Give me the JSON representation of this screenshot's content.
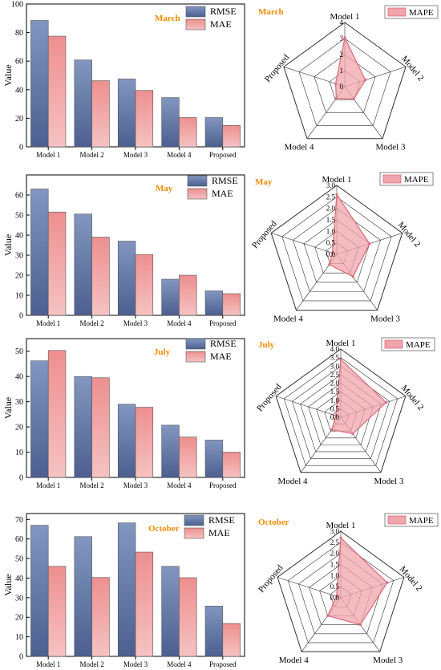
{
  "colors": {
    "rmse_top": "#8296c0",
    "rmse_bottom": "#4c5f8f",
    "mae_top": "#ee8f8f",
    "mae_bottom": "#f5c2c2",
    "mape_fill": "#f0a4ac",
    "mape_line": "#dc6a78",
    "month_label": "#f08c00"
  },
  "legend": {
    "rmse": "RMSE",
    "mae": "MAE",
    "mape": "MAPE"
  },
  "chart_data": [
    {
      "type": "bar",
      "title": "March",
      "ylabel": "Value",
      "categories": [
        "Model 1",
        "Model 2",
        "Model 3",
        "Model 4",
        "Proposed"
      ],
      "ylim": [
        0,
        100
      ],
      "yticks": [
        0,
        20,
        40,
        60,
        80,
        100
      ],
      "series": [
        {
          "name": "RMSE",
          "values": [
            88.5,
            60.8,
            47.5,
            34.5,
            20.5
          ]
        },
        {
          "name": "MAE",
          "values": [
            77.5,
            46.3,
            39.5,
            20.5,
            15
          ]
        }
      ]
    },
    {
      "type": "radar",
      "title": "March",
      "axes": [
        "Model 1",
        "Model 2",
        "Model 3",
        "Model 4",
        "Proposed"
      ],
      "rlim": [
        0,
        4
      ],
      "rticks": [
        "0",
        "1",
        "2",
        "3",
        "4"
      ],
      "series": [
        {
          "name": "MAPE",
          "values": [
            3.05,
            1.35,
            0.95,
            0.9,
            0.6
          ]
        }
      ]
    },
    {
      "type": "bar",
      "title": "May",
      "ylabel": "Value",
      "categories": [
        "Model 1",
        "Model 2",
        "Model 3",
        "Model 4",
        "Proposed"
      ],
      "ylim": [
        0,
        70
      ],
      "yticks": [
        0,
        10,
        20,
        30,
        40,
        50,
        60
      ],
      "series": [
        {
          "name": "RMSE",
          "values": [
            63,
            50.5,
            37,
            18,
            12.2
          ]
        },
        {
          "name": "MAE",
          "values": [
            51.5,
            39,
            30.3,
            20,
            10.8
          ]
        }
      ]
    },
    {
      "type": "radar",
      "title": "May",
      "axes": [
        "Model 1",
        "Model 2",
        "Model 3",
        "Model 4",
        "Proposed"
      ],
      "rlim": [
        0,
        3
      ],
      "rticks": [
        "0.0",
        "0.5",
        "1.0",
        "1.5",
        "2.0",
        "2.5",
        "3.0"
      ],
      "series": [
        {
          "name": "MAPE",
          "values": [
            2.6,
            1.5,
            1.2,
            0.55,
            0.2
          ]
        }
      ]
    },
    {
      "type": "bar",
      "title": "July",
      "ylabel": "Value",
      "categories": [
        "Model 1",
        "Model 2",
        "Model 3",
        "Model 4",
        "Proposed"
      ],
      "ylim": [
        0,
        55
      ],
      "yticks": [
        0,
        10,
        20,
        30,
        40,
        50
      ],
      "series": [
        {
          "name": "RMSE",
          "values": [
            46.2,
            40,
            29,
            20.7,
            14.8
          ]
        },
        {
          "name": "MAE",
          "values": [
            50.3,
            39.5,
            27.8,
            16,
            10
          ]
        }
      ]
    },
    {
      "type": "radar",
      "title": "July",
      "axes": [
        "Model 1",
        "Model 2",
        "Model 3",
        "Model 4",
        "Proposed"
      ],
      "rlim": [
        0,
        4
      ],
      "rticks": [
        "0.0",
        "0.5",
        "1.0",
        "1.5",
        "2.0",
        "2.5",
        "3.0",
        "3.5",
        "4.0"
      ],
      "series": [
        {
          "name": "MAPE",
          "values": [
            3.4,
            2.8,
            1.2,
            0.9,
            0.3
          ]
        }
      ]
    },
    {
      "type": "bar",
      "title": "October",
      "ylabel": "Value",
      "categories": [
        "Model 1",
        "Model 2",
        "Model 3",
        "Model 4",
        "Proposed"
      ],
      "ylim": [
        0,
        73
      ],
      "yticks": [
        0,
        10,
        20,
        30,
        40,
        50,
        60,
        70
      ],
      "series": [
        {
          "name": "RMSE",
          "values": [
            67,
            61.2,
            68.2,
            46,
            25.7
          ]
        },
        {
          "name": "MAE",
          "values": [
            46,
            40.3,
            53.3,
            40.2,
            16.8
          ]
        }
      ]
    },
    {
      "type": "radar",
      "title": "October",
      "axes": [
        "Model 1",
        "Model 2",
        "Model 3",
        "Model 4",
        "Proposed"
      ],
      "rlim": [
        0,
        3
      ],
      "rticks": [
        "0.0",
        "0.5",
        "1.0",
        "1.5",
        "2.0",
        "2.5",
        "3.0"
      ],
      "series": [
        {
          "name": "MAPE",
          "values": [
            2.7,
            2.2,
            1.5,
            1.0,
            0.2
          ]
        }
      ]
    }
  ]
}
